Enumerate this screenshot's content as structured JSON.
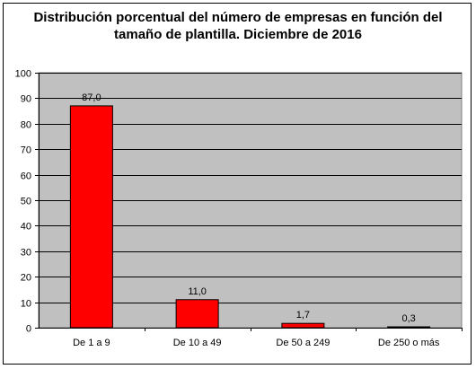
{
  "chart_data": {
    "type": "bar",
    "title_lines": [
      "Distribución porcentual del número de empresas en función del",
      "tamaño de plantilla. Diciembre de 2016"
    ],
    "categories": [
      "De 1 a 9",
      "De 10 a 49",
      "De 50 a 249",
      "De 250 o más"
    ],
    "values": [
      87.0,
      11.0,
      1.7,
      0.3
    ],
    "value_labels": [
      "87,0",
      "11,0",
      "1,7",
      "0,3"
    ],
    "yticks": [
      "0",
      "10",
      "20",
      "30",
      "40",
      "50",
      "60",
      "70",
      "80",
      "90",
      "100"
    ],
    "ylim": [
      0,
      100
    ],
    "xlabel": "",
    "ylabel": "",
    "grid": "horizontal",
    "colors": {
      "bar": "#ff0000",
      "plot_background": "#c0c0c0",
      "gridline": "#000000"
    }
  }
}
